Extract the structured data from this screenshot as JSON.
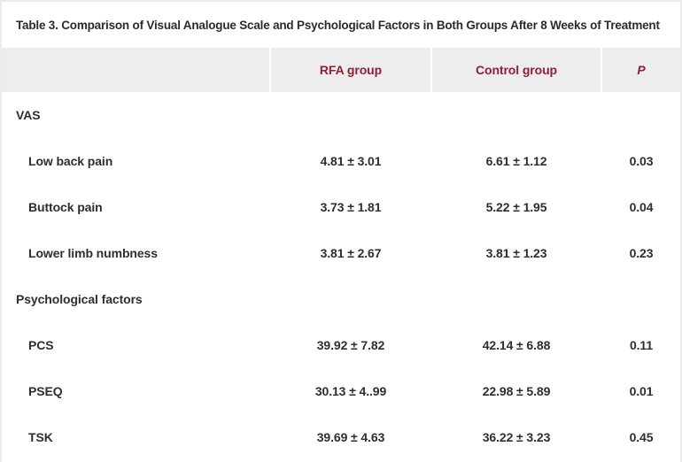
{
  "table": {
    "title": "Table 3. Comparison of Visual Analogue Scale and Psychological Factors in Both Groups After 8 Weeks of Treatment",
    "columns": {
      "label": "",
      "rfa": "RFA group",
      "control": "Control group",
      "p": "P"
    },
    "rows": [
      {
        "label": "VAS",
        "type": "section",
        "rfa": "",
        "control": "",
        "p": ""
      },
      {
        "label": "Low back pain",
        "type": "item",
        "rfa": "4.81 ± 3.01",
        "control": "6.61 ± 1.12",
        "p": "0.03"
      },
      {
        "label": "Buttock pain",
        "type": "item",
        "rfa": "3.73 ± 1.81",
        "control": "5.22 ± 1.95",
        "p": "0.04"
      },
      {
        "label": "Lower limb numbness",
        "type": "item",
        "rfa": "3.81 ± 2.67",
        "control": "3.81 ± 1.23",
        "p": "0.23"
      },
      {
        "label": "Psychological factors",
        "type": "section",
        "rfa": "",
        "control": "",
        "p": ""
      },
      {
        "label": "PCS",
        "type": "item",
        "rfa": "39.92 ± 7.82",
        "control": "42.14 ± 6.88",
        "p": "0.11"
      },
      {
        "label": "PSEQ",
        "type": "item",
        "rfa": "30.13 ± 4..99",
        "control": "22.98 ± 5.89",
        "p": "0.01"
      },
      {
        "label": "TSK",
        "type": "item",
        "rfa": "39.69 ± 4.63",
        "control": "36.22 ± 3.23",
        "p": "0.45"
      }
    ],
    "colors": {
      "header_text": "#8e1f36",
      "header_bg": "#ededed",
      "body_text": "#2e2e2e",
      "border": "#ebebeb"
    }
  }
}
